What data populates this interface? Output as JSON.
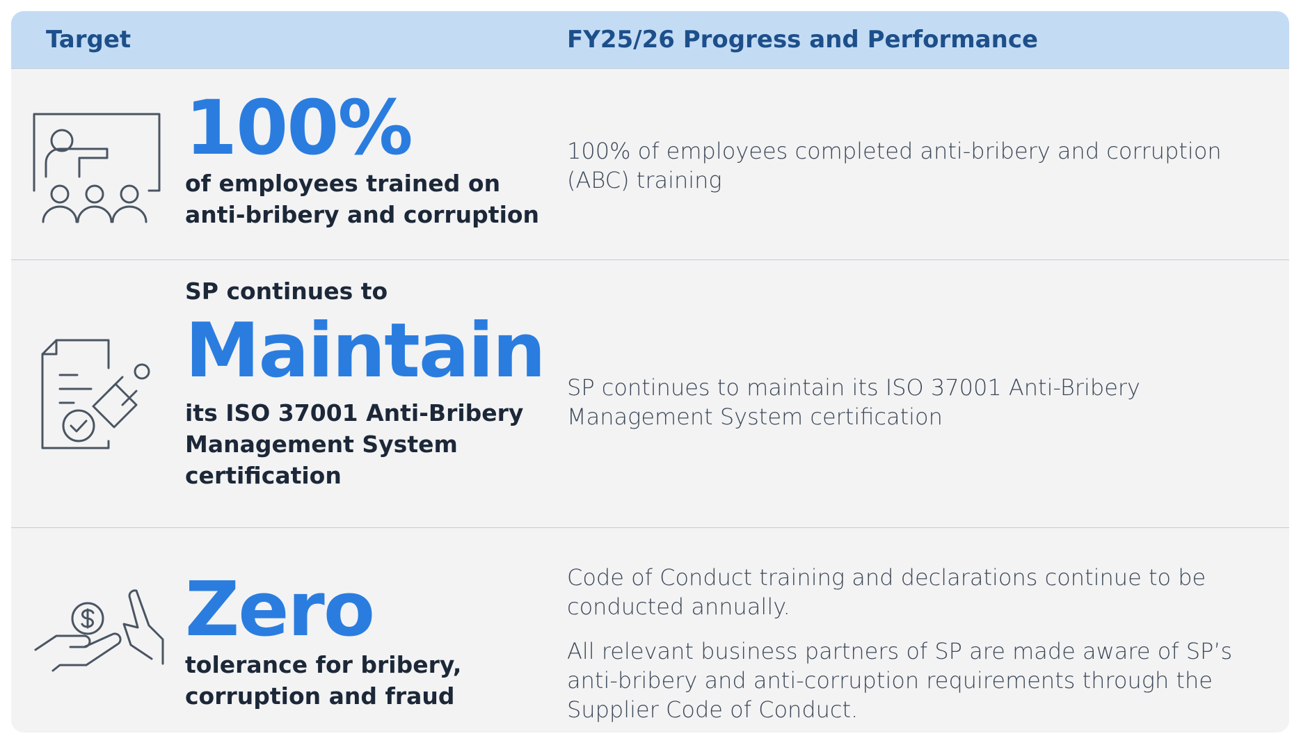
{
  "header": {
    "target": "Target",
    "progress": "FY25/26 Progress and Performance"
  },
  "rows": [
    {
      "target": {
        "highlight": "100%",
        "text": "of employees trained on anti-bribery and corruption"
      },
      "progress": [
        "100% of employees completed anti-bribery and corruption (ABC) training"
      ]
    },
    {
      "target": {
        "lead": "SP continues to",
        "highlight": "Maintain",
        "text": "its ISO 37001 Anti-Bribery Management System certification"
      },
      "progress": [
        "SP continues to maintain its ISO 37001 Anti-Bribery Management System certification"
      ]
    },
    {
      "target": {
        "highlight": "Zero",
        "text": "tolerance for bribery, corruption and fraud"
      },
      "progress": [
        "Code of Conduct training and declarations continue to be conducted annually.",
        "All relevant business partners of SP are made aware of SP’s anti-bribery and anti-corruption requirements through the Supplier Code of Conduct."
      ]
    }
  ]
}
